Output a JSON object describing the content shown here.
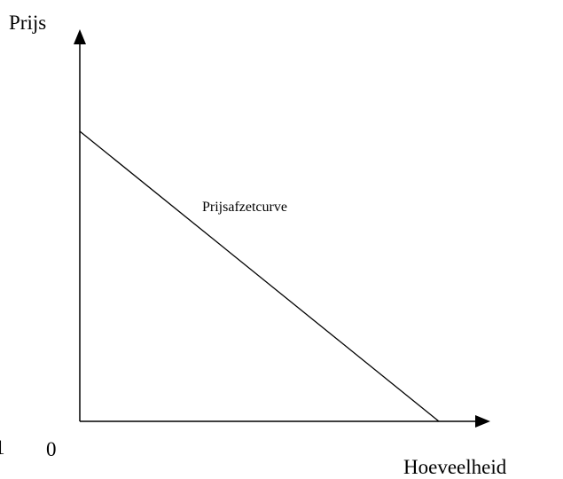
{
  "axes": {
    "y_label": "Prijs",
    "x_label": "Hoeveelheid",
    "origin": "0"
  },
  "curve": {
    "label": "Prijsafzetcurve"
  },
  "margin_fragment": "1"
}
